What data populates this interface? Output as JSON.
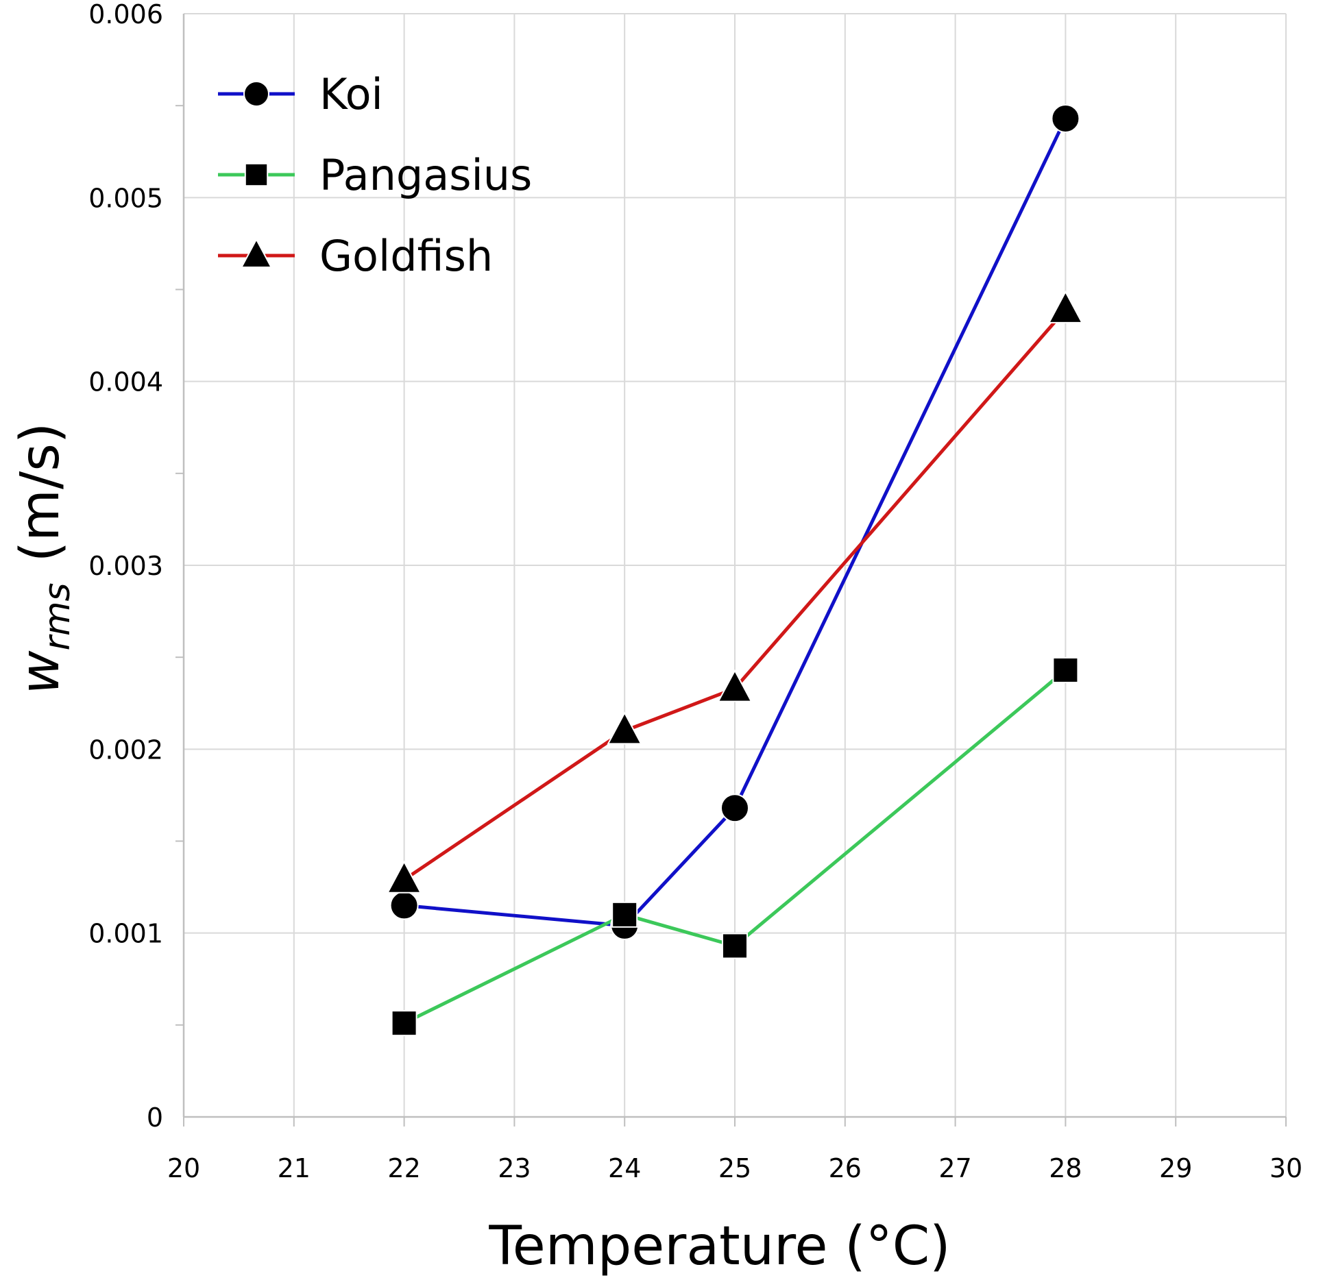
{
  "chart_data": {
    "type": "line",
    "title": "",
    "xlabel": "Temperature  (°C)",
    "ylabel": {
      "main": "w",
      "subscript": "rms",
      "unit": "(m/s)"
    },
    "xlim": [
      20,
      30
    ],
    "ylim": [
      0,
      0.006
    ],
    "xticks": [
      "20",
      "21",
      "22",
      "23",
      "24",
      "25",
      "26",
      "27",
      "28",
      "29",
      "30"
    ],
    "yticks": [
      "0",
      "0.001",
      "0.002",
      "0.003",
      "0.004",
      "0.005",
      "0.006"
    ],
    "grid": true,
    "legend_position": "top-left",
    "series": [
      {
        "name": "Koi",
        "color": "#1010c8",
        "marker": "circle",
        "x": [
          22,
          24,
          25,
          28
        ],
        "y": [
          0.00115,
          0.00104,
          0.00168,
          0.00543
        ]
      },
      {
        "name": "Pangasius",
        "color": "#3cc85a",
        "marker": "square",
        "x": [
          22,
          24,
          25,
          28
        ],
        "y": [
          0.00051,
          0.0011,
          0.00093,
          0.00243
        ]
      },
      {
        "name": "Goldfish",
        "color": "#d01818",
        "marker": "triangle",
        "x": [
          22,
          24,
          25,
          28
        ],
        "y": [
          0.00129,
          0.0021,
          0.00233,
          0.00439
        ]
      }
    ]
  }
}
